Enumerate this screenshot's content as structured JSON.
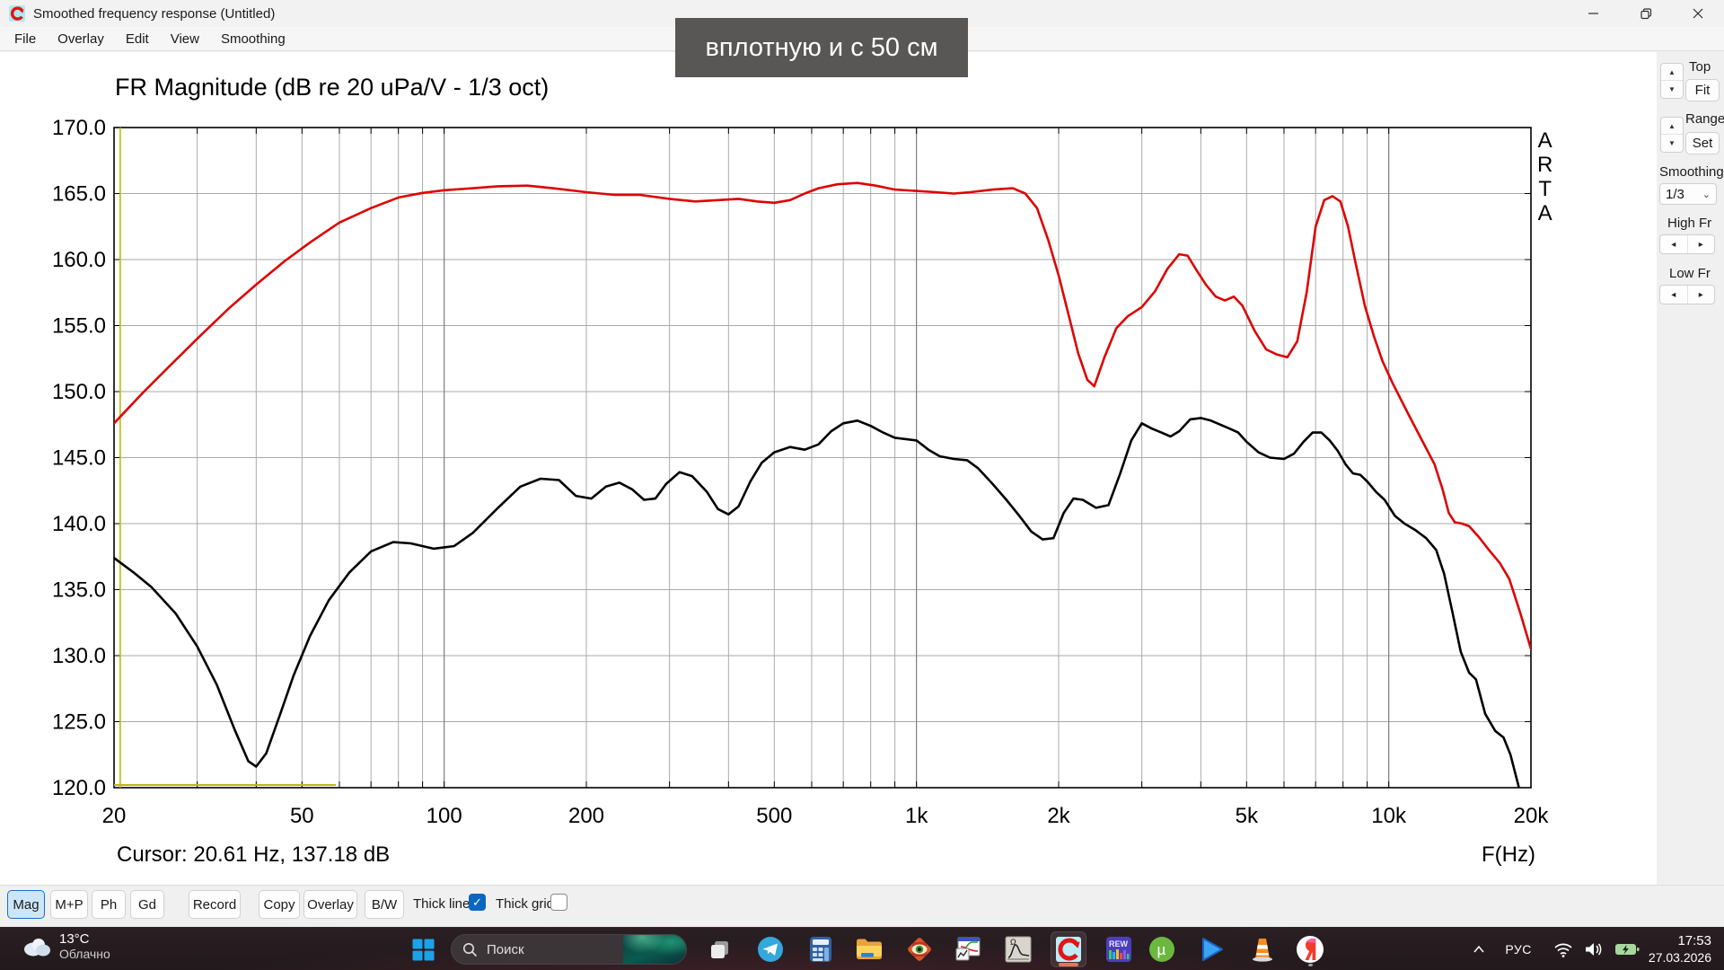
{
  "window": {
    "title": "Smoothed frequency response (Untitled)",
    "menu": [
      "File",
      "Overlay",
      "Edit",
      "View",
      "Smoothing"
    ]
  },
  "tooltip": {
    "text": "вплотную и с 50 см"
  },
  "side_panel": {
    "top_label": "Top",
    "fit_label": "Fit",
    "range_label": "Range",
    "set_label": "Set",
    "smoothing_label": "Smoothing",
    "smoothing_value": "1/3",
    "high_fr_label": "High Fr",
    "low_fr_label": "Low Fr"
  },
  "toolbar": {
    "buttons": [
      "Mag",
      "M+P",
      "Ph",
      "Gd",
      "Record",
      "Copy",
      "Overlay",
      "B/W"
    ],
    "active_button": "Mag",
    "thick_line_label": "Thick line",
    "thick_line_checked": true,
    "thick_grid_label": "Thick grid",
    "thick_grid_checked": false
  },
  "taskbar": {
    "weather_temp": "13°C",
    "weather_desc": "Облачно",
    "search_placeholder": "Поиск",
    "icon_text": {
      "rew": "REW",
      "utorrent_mu": "µ",
      "limp_omega": "Ω"
    },
    "lang": "РУС",
    "time": "17:53",
    "date": "27.03.2026"
  },
  "chart_data": {
    "type": "line",
    "title": "FR Magnitude (dB re 20 uPa/V - 1/3 oct)",
    "xlabel": "F(Hz)",
    "ylabel": "dB",
    "x_scale": "log",
    "xlim": [
      20,
      20000
    ],
    "ylim": [
      120,
      170
    ],
    "grid": true,
    "legend": "none",
    "side_label": "A\nR\nT\nA",
    "cursor_readout": "Cursor: 20.61 Hz, 137.18 dB",
    "cursor": {
      "freq_hz": 20.61,
      "db": 137.18,
      "marker_db_level": 120.2,
      "marker_from_hz": 20,
      "marker_to_hz": 59,
      "color": "#b9b912"
    },
    "y_ticks": [
      {
        "v": 170,
        "label": "170.0"
      },
      {
        "v": 165,
        "label": "165.0"
      },
      {
        "v": 160,
        "label": "160.0"
      },
      {
        "v": 155,
        "label": "155.0"
      },
      {
        "v": 150,
        "label": "150.0"
      },
      {
        "v": 145,
        "label": "145.0"
      },
      {
        "v": 140,
        "label": "140.0"
      },
      {
        "v": 135,
        "label": "135.0"
      },
      {
        "v": 130,
        "label": "130.0"
      },
      {
        "v": 125,
        "label": "125.0"
      },
      {
        "v": 120,
        "label": "120.0"
      }
    ],
    "x_ticks": [
      {
        "v": 20,
        "label": "20"
      },
      {
        "v": 50,
        "label": "50"
      },
      {
        "v": 100,
        "label": "100"
      },
      {
        "v": 200,
        "label": "200"
      },
      {
        "v": 500,
        "label": "500"
      },
      {
        "v": 1000,
        "label": "1k"
      },
      {
        "v": 2000,
        "label": "2k"
      },
      {
        "v": 5000,
        "label": "5k"
      },
      {
        "v": 10000,
        "label": "10k"
      },
      {
        "v": 20000,
        "label": "20k"
      }
    ],
    "series": [
      {
        "name": "red-curve-50cm",
        "color": "#dd0404",
        "points": [
          [
            20,
            147.6
          ],
          [
            23,
            149.9
          ],
          [
            26,
            151.8
          ],
          [
            30,
            154.0
          ],
          [
            35,
            156.3
          ],
          [
            40,
            158.1
          ],
          [
            46,
            159.9
          ],
          [
            52,
            161.3
          ],
          [
            60,
            162.8
          ],
          [
            70,
            163.9
          ],
          [
            80,
            164.7
          ],
          [
            90,
            165.05
          ],
          [
            100,
            165.25
          ],
          [
            115,
            165.4
          ],
          [
            130,
            165.55
          ],
          [
            150,
            165.6
          ],
          [
            170,
            165.4
          ],
          [
            200,
            165.1
          ],
          [
            230,
            164.9
          ],
          [
            260,
            164.9
          ],
          [
            300,
            164.6
          ],
          [
            340,
            164.4
          ],
          [
            380,
            164.5
          ],
          [
            420,
            164.6
          ],
          [
            460,
            164.4
          ],
          [
            500,
            164.3
          ],
          [
            540,
            164.5
          ],
          [
            580,
            165.0
          ],
          [
            620,
            165.4
          ],
          [
            680,
            165.7
          ],
          [
            750,
            165.8
          ],
          [
            820,
            165.6
          ],
          [
            900,
            165.3
          ],
          [
            1000,
            165.2
          ],
          [
            1100,
            165.1
          ],
          [
            1200,
            165.0
          ],
          [
            1300,
            165.1
          ],
          [
            1450,
            165.3
          ],
          [
            1600,
            165.4
          ],
          [
            1700,
            165.0
          ],
          [
            1800,
            163.9
          ],
          [
            1900,
            161.5
          ],
          [
            2000,
            158.8
          ],
          [
            2100,
            155.8
          ],
          [
            2200,
            152.9
          ],
          [
            2300,
            150.9
          ],
          [
            2380,
            150.4
          ],
          [
            2500,
            152.6
          ],
          [
            2650,
            154.8
          ],
          [
            2800,
            155.7
          ],
          [
            3000,
            156.4
          ],
          [
            3200,
            157.6
          ],
          [
            3400,
            159.3
          ],
          [
            3600,
            160.4
          ],
          [
            3750,
            160.3
          ],
          [
            3900,
            159.3
          ],
          [
            4100,
            158.1
          ],
          [
            4300,
            157.2
          ],
          [
            4500,
            156.9
          ],
          [
            4700,
            157.2
          ],
          [
            4900,
            156.5
          ],
          [
            5200,
            154.6
          ],
          [
            5500,
            153.2
          ],
          [
            5800,
            152.8
          ],
          [
            6100,
            152.6
          ],
          [
            6400,
            153.8
          ],
          [
            6700,
            157.5
          ],
          [
            7000,
            162.5
          ],
          [
            7300,
            164.5
          ],
          [
            7600,
            164.8
          ],
          [
            7900,
            164.4
          ],
          [
            8200,
            162.5
          ],
          [
            8500,
            159.8
          ],
          [
            8900,
            156.5
          ],
          [
            9300,
            154.2
          ],
          [
            9700,
            152.3
          ],
          [
            10200,
            150.6
          ],
          [
            11000,
            148.3
          ],
          [
            11800,
            146.2
          ],
          [
            12500,
            144.5
          ],
          [
            13000,
            142.6
          ],
          [
            13400,
            140.8
          ],
          [
            13800,
            140.1
          ],
          [
            14300,
            140.0
          ],
          [
            14800,
            139.8
          ],
          [
            15500,
            139.0
          ],
          [
            16300,
            138.0
          ],
          [
            17200,
            137.0
          ],
          [
            18000,
            135.8
          ],
          [
            19000,
            133.2
          ],
          [
            20000,
            130.5
          ]
        ]
      },
      {
        "name": "black-curve-close",
        "color": "#000000",
        "points": [
          [
            20,
            137.4
          ],
          [
            22,
            136.3
          ],
          [
            24,
            135.2
          ],
          [
            27,
            133.2
          ],
          [
            30,
            130.7
          ],
          [
            33,
            127.8
          ],
          [
            36,
            124.4
          ],
          [
            38.5,
            122.0
          ],
          [
            40,
            121.6
          ],
          [
            42,
            122.6
          ],
          [
            45,
            125.6
          ],
          [
            48,
            128.5
          ],
          [
            52,
            131.5
          ],
          [
            57,
            134.2
          ],
          [
            63,
            136.3
          ],
          [
            70,
            137.9
          ],
          [
            78,
            138.6
          ],
          [
            85,
            138.5
          ],
          [
            95,
            138.1
          ],
          [
            105,
            138.3
          ],
          [
            115,
            139.3
          ],
          [
            130,
            141.2
          ],
          [
            145,
            142.8
          ],
          [
            160,
            143.4
          ],
          [
            175,
            143.3
          ],
          [
            190,
            142.1
          ],
          [
            205,
            141.9
          ],
          [
            220,
            142.8
          ],
          [
            235,
            143.1
          ],
          [
            250,
            142.6
          ],
          [
            265,
            141.8
          ],
          [
            280,
            141.9
          ],
          [
            295,
            143.0
          ],
          [
            315,
            143.9
          ],
          [
            335,
            143.6
          ],
          [
            360,
            142.4
          ],
          [
            380,
            141.1
          ],
          [
            400,
            140.7
          ],
          [
            420,
            141.3
          ],
          [
            445,
            143.2
          ],
          [
            470,
            144.6
          ],
          [
            500,
            145.4
          ],
          [
            540,
            145.8
          ],
          [
            580,
            145.6
          ],
          [
            620,
            146.0
          ],
          [
            660,
            147.0
          ],
          [
            700,
            147.6
          ],
          [
            750,
            147.8
          ],
          [
            800,
            147.4
          ],
          [
            850,
            146.9
          ],
          [
            900,
            146.5
          ],
          [
            1000,
            146.3
          ],
          [
            1060,
            145.6
          ],
          [
            1120,
            145.1
          ],
          [
            1200,
            144.9
          ],
          [
            1280,
            144.8
          ],
          [
            1350,
            144.2
          ],
          [
            1450,
            143.0
          ],
          [
            1550,
            141.8
          ],
          [
            1650,
            140.6
          ],
          [
            1750,
            139.4
          ],
          [
            1850,
            138.8
          ],
          [
            1950,
            138.9
          ],
          [
            2050,
            140.8
          ],
          [
            2150,
            141.9
          ],
          [
            2250,
            141.8
          ],
          [
            2400,
            141.2
          ],
          [
            2550,
            141.4
          ],
          [
            2700,
            143.8
          ],
          [
            2850,
            146.3
          ],
          [
            3000,
            147.6
          ],
          [
            3150,
            147.2
          ],
          [
            3300,
            146.9
          ],
          [
            3450,
            146.6
          ],
          [
            3600,
            147.0
          ],
          [
            3800,
            147.9
          ],
          [
            4000,
            148.0
          ],
          [
            4200,
            147.8
          ],
          [
            4400,
            147.5
          ],
          [
            4600,
            147.2
          ],
          [
            4800,
            146.9
          ],
          [
            5000,
            146.2
          ],
          [
            5300,
            145.4
          ],
          [
            5600,
            145.0
          ],
          [
            6000,
            144.9
          ],
          [
            6300,
            145.3
          ],
          [
            6600,
            146.2
          ],
          [
            6900,
            146.9
          ],
          [
            7200,
            146.9
          ],
          [
            7500,
            146.3
          ],
          [
            7800,
            145.5
          ],
          [
            8100,
            144.5
          ],
          [
            8400,
            143.8
          ],
          [
            8700,
            143.7
          ],
          [
            9000,
            143.2
          ],
          [
            9400,
            142.4
          ],
          [
            9800,
            141.8
          ],
          [
            10300,
            140.6
          ],
          [
            10800,
            140.0
          ],
          [
            11400,
            139.5
          ],
          [
            12000,
            138.9
          ],
          [
            12600,
            138.0
          ],
          [
            13100,
            136.2
          ],
          [
            13600,
            133.5
          ],
          [
            14200,
            130.3
          ],
          [
            14800,
            128.7
          ],
          [
            15300,
            128.2
          ],
          [
            16000,
            125.6
          ],
          [
            16800,
            124.3
          ],
          [
            17500,
            123.8
          ],
          [
            18100,
            122.5
          ],
          [
            18800,
            120.2
          ],
          [
            19000,
            119.5
          ]
        ]
      }
    ]
  }
}
